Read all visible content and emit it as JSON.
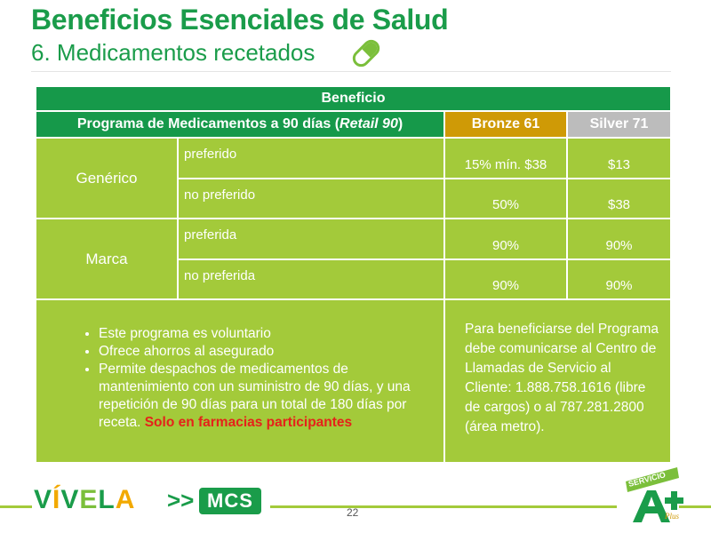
{
  "title": "Beneficios Esenciales de Salud",
  "subtitle": "6. Medicamentos recetados",
  "table": {
    "header_beneficio": "Beneficio",
    "program_prefix": "Programa de Medicamentos a 90 días (",
    "program_italic": "Retail 90",
    "program_suffix": ")",
    "bronze": "Bronze 61",
    "silver": "Silver 71",
    "groups": [
      {
        "category": "Genérico",
        "rows": [
          {
            "tier": "preferido",
            "bronze": "15% mín. $38",
            "silver": "$13"
          },
          {
            "tier": "no preferido",
            "bronze": "50%",
            "silver": "$38"
          }
        ]
      },
      {
        "category": "Marca",
        "rows": [
          {
            "tier": "preferida",
            "bronze": "90%",
            "silver": "90%"
          },
          {
            "tier": "no preferida",
            "bronze": "90%",
            "silver": "90%"
          }
        ]
      }
    ],
    "bullets": [
      "Este programa es voluntario",
      "Ofrece ahorros al asegurado",
      "Permite despachos de medicamentos de mantenimiento con un suministro de 90 días, y una repetición de 90 días para un total de 180 días por receta."
    ],
    "bullet_highlight": "Solo en farmacias participantes",
    "contact_text": "Para beneficiarse del Programa debe comunicarse al Centro de Llamadas de Servicio al Cliente: 1.888.758.1616 (libre de cargos) o al 787.281.2800 (área metro)."
  },
  "footer": {
    "logo_vivela": "VÍVELA",
    "logo_arrows": ">>",
    "logo_mcs": "MCS",
    "page_number": "22",
    "badge_text": "SERVICIO",
    "badge_plus": "Plus"
  },
  "colors": {
    "green": "#16994a",
    "light_green": "#a3ca3a",
    "bronze": "#cf9a06",
    "silver": "#bcbcbc",
    "highlight_red": "#e5221a"
  }
}
